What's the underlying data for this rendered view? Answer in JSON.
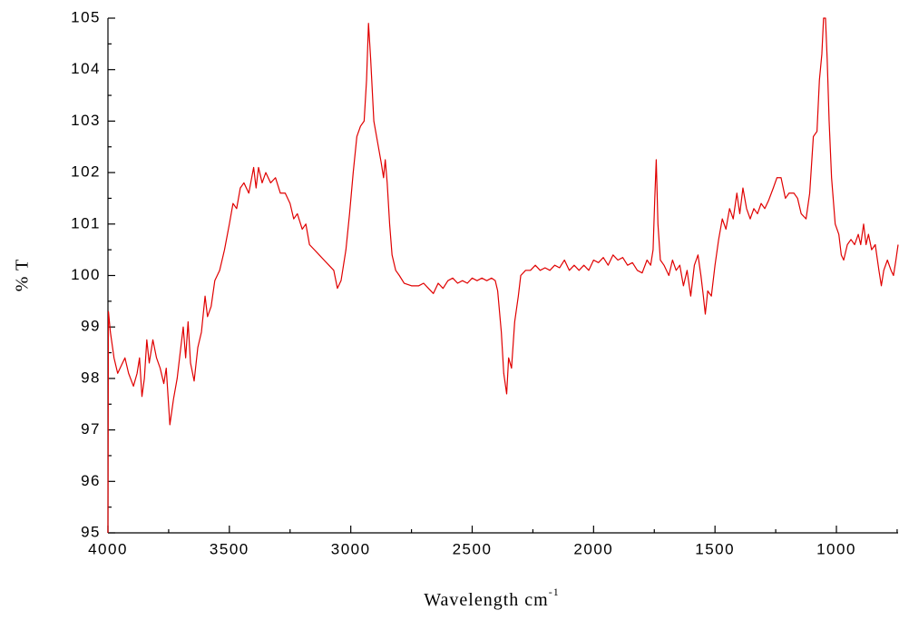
{
  "chart_data": {
    "type": "line",
    "xlabel": "Wavelength cm",
    "xlabel_superscript": "-1",
    "ylabel": "% T",
    "xlim": [
      4000,
      746
    ],
    "ylim": [
      95,
      105
    ],
    "xticks": [
      4000,
      3500,
      3000,
      2500,
      2000,
      1500,
      1000
    ],
    "x_minor_ticks": [
      3750,
      3250,
      2750,
      2250,
      1750,
      1250,
      750
    ],
    "yticks": [
      95,
      96,
      97,
      98,
      99,
      100,
      101,
      102,
      103,
      104,
      105
    ],
    "y_minor_ticks": [
      95.5,
      96.5,
      97.5,
      98.5,
      99.5,
      100.5,
      101.5,
      102.5,
      103.5,
      104.5
    ],
    "color": "#e00000",
    "x": [
      4000,
      3998,
      3990,
      3975,
      3960,
      3940,
      3930,
      3915,
      3895,
      3880,
      3870,
      3860,
      3850,
      3840,
      3830,
      3815,
      3800,
      3785,
      3770,
      3760,
      3745,
      3730,
      3715,
      3705,
      3690,
      3680,
      3670,
      3660,
      3645,
      3630,
      3615,
      3600,
      3590,
      3575,
      3560,
      3540,
      3520,
      3500,
      3485,
      3470,
      3455,
      3440,
      3420,
      3400,
      3390,
      3380,
      3365,
      3350,
      3330,
      3310,
      3290,
      3270,
      3250,
      3235,
      3220,
      3200,
      3185,
      3170,
      3150,
      3130,
      3110,
      3090,
      3070,
      3055,
      3040,
      3020,
      3005,
      2990,
      2975,
      2960,
      2945,
      2935,
      2927,
      2918,
      2905,
      2890,
      2875,
      2865,
      2858,
      2850,
      2840,
      2830,
      2815,
      2800,
      2780,
      2750,
      2720,
      2700,
      2680,
      2660,
      2640,
      2620,
      2600,
      2580,
      2560,
      2540,
      2520,
      2500,
      2480,
      2460,
      2440,
      2420,
      2405,
      2395,
      2380,
      2370,
      2358,
      2350,
      2338,
      2325,
      2310,
      2300,
      2280,
      2260,
      2240,
      2220,
      2200,
      2180,
      2160,
      2140,
      2120,
      2100,
      2080,
      2060,
      2040,
      2020,
      2000,
      1980,
      1960,
      1940,
      1920,
      1900,
      1880,
      1860,
      1840,
      1820,
      1800,
      1780,
      1765,
      1755,
      1748,
      1742,
      1735,
      1725,
      1710,
      1690,
      1675,
      1660,
      1645,
      1630,
      1615,
      1600,
      1585,
      1570,
      1558,
      1548,
      1540,
      1530,
      1515,
      1500,
      1485,
      1470,
      1455,
      1440,
      1425,
      1410,
      1398,
      1385,
      1370,
      1355,
      1340,
      1325,
      1310,
      1295,
      1280,
      1260,
      1245,
      1228,
      1210,
      1195,
      1175,
      1160,
      1145,
      1125,
      1110,
      1095,
      1080,
      1070,
      1060,
      1053,
      1045,
      1038,
      1030,
      1020,
      1005,
      990,
      980,
      970,
      955,
      940,
      925,
      910,
      900,
      888,
      878,
      868,
      855,
      840,
      825,
      815,
      805,
      790,
      775,
      765,
      755,
      746
    ],
    "values": [
      95,
      99.3,
      98.9,
      98.4,
      98.1,
      98.3,
      98.4,
      98.1,
      97.85,
      98.1,
      98.4,
      97.65,
      98.0,
      98.75,
      98.3,
      98.75,
      98.4,
      98.2,
      97.9,
      98.2,
      97.1,
      97.6,
      98.0,
      98.4,
      99.0,
      98.4,
      99.1,
      98.3,
      97.95,
      98.6,
      98.9,
      99.6,
      99.2,
      99.4,
      99.9,
      100.1,
      100.5,
      101.0,
      101.4,
      101.3,
      101.7,
      101.8,
      101.6,
      102.1,
      101.7,
      102.1,
      101.8,
      102.0,
      101.8,
      101.9,
      101.6,
      101.6,
      101.4,
      101.1,
      101.2,
      100.9,
      101.0,
      100.6,
      100.5,
      100.4,
      100.3,
      100.2,
      100.1,
      99.75,
      99.9,
      100.5,
      101.2,
      102.0,
      102.7,
      102.9,
      103.0,
      103.8,
      104.9,
      104.2,
      103.0,
      102.6,
      102.2,
      101.9,
      102.25,
      101.8,
      101.0,
      100.4,
      100.1,
      100.0,
      99.85,
      99.8,
      99.8,
      99.85,
      99.75,
      99.65,
      99.85,
      99.75,
      99.9,
      99.95,
      99.85,
      99.9,
      99.85,
      99.95,
      99.9,
      99.95,
      99.9,
      99.95,
      99.9,
      99.7,
      98.9,
      98.1,
      97.7,
      98.4,
      98.2,
      99.1,
      99.6,
      100.0,
      100.1,
      100.1,
      100.2,
      100.1,
      100.15,
      100.1,
      100.2,
      100.15,
      100.3,
      100.1,
      100.2,
      100.1,
      100.2,
      100.1,
      100.3,
      100.25,
      100.35,
      100.2,
      100.4,
      100.3,
      100.35,
      100.2,
      100.25,
      100.1,
      100.05,
      100.3,
      100.2,
      100.5,
      101.5,
      102.25,
      101.0,
      100.3,
      100.2,
      100.0,
      100.3,
      100.1,
      100.2,
      99.8,
      100.1,
      99.6,
      100.2,
      100.4,
      100.0,
      99.6,
      99.25,
      99.7,
      99.6,
      100.2,
      100.7,
      101.1,
      100.9,
      101.3,
      101.1,
      101.6,
      101.2,
      101.7,
      101.3,
      101.1,
      101.3,
      101.2,
      101.4,
      101.3,
      101.45,
      101.7,
      101.9,
      101.9,
      101.5,
      101.6,
      101.6,
      101.5,
      101.2,
      101.1,
      101.6,
      102.7,
      102.8,
      103.8,
      104.3,
      105.0,
      105.0,
      104.2,
      103.0,
      101.9,
      101.0,
      100.8,
      100.4,
      100.3,
      100.6,
      100.7,
      100.6,
      100.8,
      100.6,
      101.0,
      100.6,
      100.8,
      100.5,
      100.6,
      100.1,
      99.8,
      100.1,
      100.3,
      100.1,
      100.0,
      100.3,
      100.6
    ]
  }
}
